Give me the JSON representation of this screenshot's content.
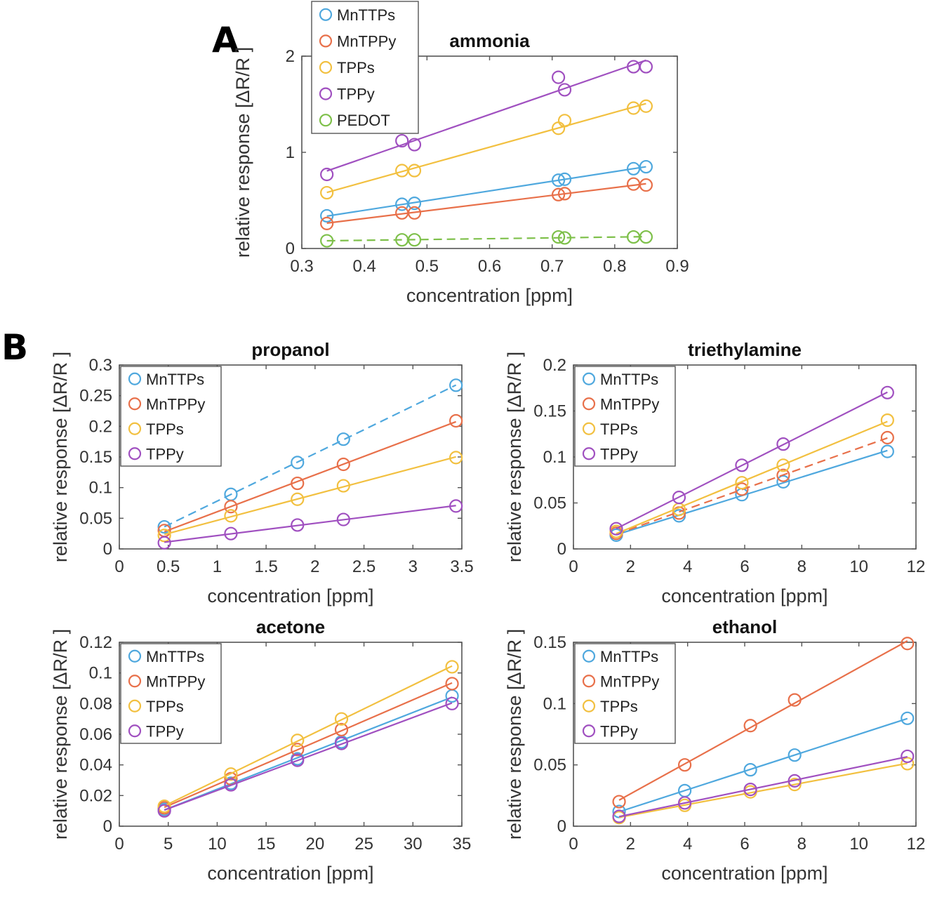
{
  "panel_labels": [
    "A",
    "B"
  ],
  "chart_data": [
    {
      "type": "scatter",
      "title": "ammonia",
      "xlabel": "concentration [ppm]",
      "ylabel": "relative response [ΔR/R ]",
      "xlim": [
        0.3,
        0.9
      ],
      "ylim": [
        0,
        2
      ],
      "xticks": [
        0.3,
        0.4,
        0.5,
        0.6,
        0.7,
        0.8,
        0.9
      ],
      "xtick_labels": [
        "0.3",
        "0.4",
        "0.5",
        "0.6",
        "0.7",
        "0.8",
        "0.9"
      ],
      "yticks": [
        0,
        1,
        2
      ],
      "ytick_labels": [
        "0",
        "1",
        "2"
      ],
      "legend_position": "outside-top-left",
      "series": [
        {
          "name": "MnTTPs",
          "color": "#4fa8de",
          "dashed": false,
          "x": [
            0.34,
            0.46,
            0.48,
            0.71,
            0.72,
            0.83,
            0.85
          ],
          "y": [
            0.34,
            0.46,
            0.47,
            0.71,
            0.72,
            0.83,
            0.85
          ]
        },
        {
          "name": "MnTPPy",
          "color": "#e8704a",
          "dashed": false,
          "x": [
            0.34,
            0.46,
            0.48,
            0.71,
            0.72,
            0.83,
            0.85
          ],
          "y": [
            0.26,
            0.37,
            0.37,
            0.56,
            0.57,
            0.67,
            0.66
          ]
        },
        {
          "name": "TPPs",
          "color": "#f2c040",
          "dashed": false,
          "x": [
            0.34,
            0.46,
            0.48,
            0.71,
            0.72,
            0.83,
            0.85
          ],
          "y": [
            0.58,
            0.81,
            0.81,
            1.25,
            1.33,
            1.46,
            1.48
          ]
        },
        {
          "name": "TPPy",
          "color": "#a050c0",
          "dashed": false,
          "x": [
            0.34,
            0.46,
            0.48,
            0.71,
            0.72,
            0.83,
            0.85
          ],
          "y": [
            0.77,
            1.12,
            1.08,
            1.78,
            1.65,
            1.89,
            1.89
          ]
        },
        {
          "name": "PEDOT",
          "color": "#7ec04a",
          "dashed": true,
          "x": [
            0.34,
            0.46,
            0.48,
            0.71,
            0.72,
            0.83,
            0.85
          ],
          "y": [
            0.08,
            0.09,
            0.09,
            0.12,
            0.11,
            0.12,
            0.12
          ]
        }
      ]
    },
    {
      "type": "scatter",
      "title": "propanol",
      "xlabel": "concentration [ppm]",
      "ylabel": "relative response [ΔR/R ]",
      "xlim": [
        0,
        3.5
      ],
      "ylim": [
        0,
        0.3
      ],
      "xticks": [
        0,
        0.5,
        1,
        1.5,
        2,
        2.5,
        3,
        3.5
      ],
      "xtick_labels": [
        "0",
        "0.5",
        "1",
        "1.5",
        "2",
        "2.5",
        "3",
        "3.5"
      ],
      "yticks": [
        0,
        0.05,
        0.1,
        0.15,
        0.2,
        0.25,
        0.3
      ],
      "ytick_labels": [
        "0",
        "0.05",
        "0.1",
        "0.15",
        "0.2",
        "0.25",
        "0.3"
      ],
      "legend_position": "top-left",
      "series": [
        {
          "name": "MnTTPs",
          "color": "#4fa8de",
          "dashed": true,
          "x": [
            0.46,
            1.14,
            1.82,
            2.29,
            3.44
          ],
          "y": [
            0.036,
            0.089,
            0.141,
            0.179,
            0.267
          ]
        },
        {
          "name": "MnTPPy",
          "color": "#e8704a",
          "dashed": false,
          "x": [
            0.46,
            1.14,
            1.82,
            2.29,
            3.44
          ],
          "y": [
            0.03,
            0.069,
            0.107,
            0.138,
            0.209
          ]
        },
        {
          "name": "TPPs",
          "color": "#f2c040",
          "dashed": false,
          "x": [
            0.46,
            1.14,
            1.82,
            2.29,
            3.44
          ],
          "y": [
            0.022,
            0.054,
            0.081,
            0.103,
            0.149
          ]
        },
        {
          "name": "TPPy",
          "color": "#a050c0",
          "dashed": false,
          "x": [
            0.46,
            1.14,
            1.82,
            2.29,
            3.44
          ],
          "y": [
            0.01,
            0.025,
            0.039,
            0.048,
            0.07
          ]
        }
      ]
    },
    {
      "type": "scatter",
      "title": "triethylamine",
      "xlabel": "concentration [ppm]",
      "ylabel": "relative response [ΔR/R ]",
      "xlim": [
        0,
        12
      ],
      "ylim": [
        0,
        0.2
      ],
      "xticks": [
        0,
        2,
        4,
        6,
        8,
        10,
        12
      ],
      "xtick_labels": [
        "0",
        "2",
        "4",
        "6",
        "8",
        "10",
        "12"
      ],
      "yticks": [
        0,
        0.05,
        0.1,
        0.15,
        0.2
      ],
      "ytick_labels": [
        "0",
        "0.05",
        "0.1",
        "0.15",
        "0.2"
      ],
      "legend_position": "top-left",
      "series": [
        {
          "name": "MnTTPs",
          "color": "#4fa8de",
          "dashed": false,
          "x": [
            1.5,
            3.7,
            5.9,
            7.35,
            11
          ],
          "y": [
            0.015,
            0.036,
            0.059,
            0.073,
            0.106
          ]
        },
        {
          "name": "MnTPPy",
          "color": "#e8704a",
          "dashed": true,
          "x": [
            1.5,
            3.7,
            5.9,
            7.35,
            11
          ],
          "y": [
            0.017,
            0.039,
            0.065,
            0.08,
            0.121
          ]
        },
        {
          "name": "TPPs",
          "color": "#f2c040",
          "dashed": false,
          "x": [
            1.5,
            3.7,
            5.9,
            7.35,
            11
          ],
          "y": [
            0.019,
            0.043,
            0.072,
            0.091,
            0.14
          ]
        },
        {
          "name": "TPPy",
          "color": "#a050c0",
          "dashed": false,
          "x": [
            1.5,
            3.7,
            5.9,
            7.35,
            11
          ],
          "y": [
            0.022,
            0.056,
            0.091,
            0.114,
            0.17
          ]
        }
      ]
    },
    {
      "type": "scatter",
      "title": "acetone",
      "xlabel": "concentration [ppm]",
      "ylabel": "relative response [ΔR/R ]",
      "xlim": [
        0,
        35
      ],
      "ylim": [
        0,
        0.12
      ],
      "xticks": [
        0,
        5,
        10,
        15,
        20,
        25,
        30,
        35
      ],
      "xtick_labels": [
        "0",
        "5",
        "10",
        "15",
        "20",
        "25",
        "30",
        "35"
      ],
      "yticks": [
        0,
        0.02,
        0.04,
        0.06,
        0.08,
        0.1,
        0.12
      ],
      "ytick_labels": [
        "0",
        "0.02",
        "0.04",
        "0.06",
        "0.08",
        "0.1",
        "0.12"
      ],
      "legend_position": "top-left",
      "series": [
        {
          "name": "MnTTPs",
          "color": "#4fa8de",
          "dashed": false,
          "x": [
            4.6,
            11.4,
            18.2,
            22.7,
            34
          ],
          "y": [
            0.011,
            0.028,
            0.044,
            0.055,
            0.085
          ]
        },
        {
          "name": "MnTPPy",
          "color": "#e8704a",
          "dashed": false,
          "x": [
            4.6,
            11.4,
            18.2,
            22.7,
            34
          ],
          "y": [
            0.012,
            0.031,
            0.05,
            0.063,
            0.093
          ]
        },
        {
          "name": "TPPs",
          "color": "#f2c040",
          "dashed": false,
          "x": [
            4.6,
            11.4,
            18.2,
            22.7,
            34
          ],
          "y": [
            0.013,
            0.034,
            0.056,
            0.07,
            0.104
          ]
        },
        {
          "name": "TPPy",
          "color": "#a050c0",
          "dashed": false,
          "x": [
            4.6,
            11.4,
            18.2,
            22.7,
            34
          ],
          "y": [
            0.01,
            0.027,
            0.043,
            0.054,
            0.08
          ]
        }
      ]
    },
    {
      "type": "scatter",
      "title": "ethanol",
      "xlabel": "concentration [ppm]",
      "ylabel": "relative response [ΔR/R ]",
      "xlim": [
        0,
        12
      ],
      "ylim": [
        0,
        0.15
      ],
      "xticks": [
        0,
        2,
        4,
        6,
        8,
        10,
        12
      ],
      "xtick_labels": [
        "0",
        "2",
        "4",
        "6",
        "8",
        "10",
        "12"
      ],
      "yticks": [
        0,
        0.05,
        0.1,
        0.15
      ],
      "ytick_labels": [
        "0",
        "0.05",
        "0.1",
        "0.15"
      ],
      "legend_position": "top-left",
      "series": [
        {
          "name": "MnTTPs",
          "color": "#4fa8de",
          "dashed": false,
          "x": [
            1.6,
            3.9,
            6.2,
            7.75,
            11.7
          ],
          "y": [
            0.012,
            0.029,
            0.046,
            0.058,
            0.088
          ]
        },
        {
          "name": "MnTPPy",
          "color": "#e8704a",
          "dashed": false,
          "x": [
            1.6,
            3.9,
            6.2,
            7.75,
            11.7
          ],
          "y": [
            0.02,
            0.05,
            0.082,
            0.103,
            0.149
          ]
        },
        {
          "name": "TPPs",
          "color": "#f2c040",
          "dashed": false,
          "x": [
            1.6,
            3.9,
            6.2,
            7.75,
            11.7
          ],
          "y": [
            0.007,
            0.017,
            0.028,
            0.034,
            0.051
          ]
        },
        {
          "name": "TPPy",
          "color": "#a050c0",
          "dashed": false,
          "x": [
            1.6,
            3.9,
            6.2,
            7.75,
            11.7
          ],
          "y": [
            0.008,
            0.019,
            0.03,
            0.037,
            0.057
          ]
        }
      ]
    }
  ]
}
